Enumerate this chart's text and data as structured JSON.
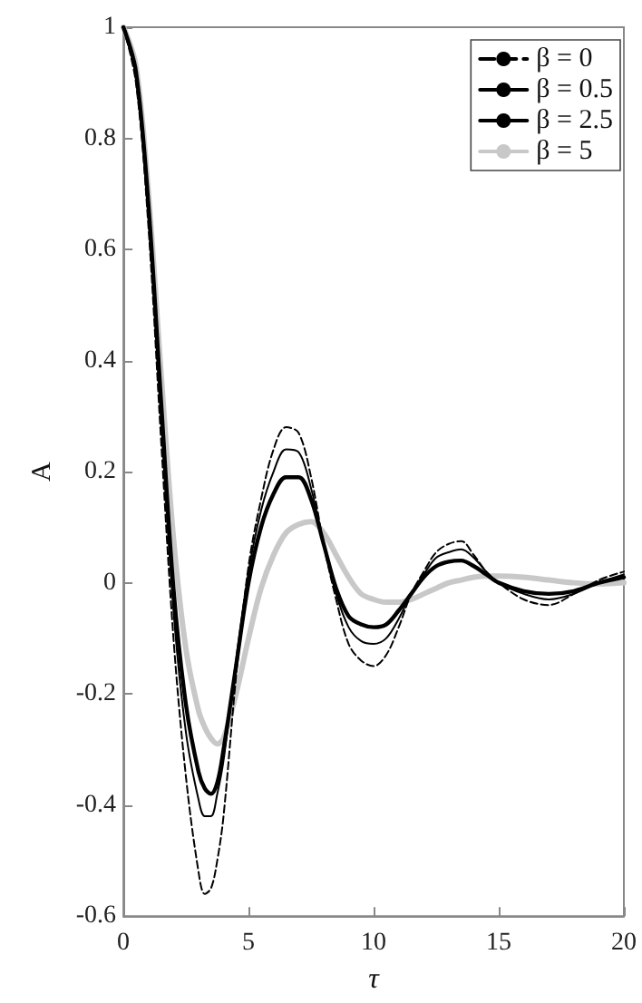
{
  "chart_data": {
    "type": "line",
    "xlabel": "τ",
    "ylabel": "A",
    "x": [
      0,
      0.5,
      1,
      1.5,
      2,
      2.5,
      3,
      3.25,
      3.5,
      3.75,
      4,
      4.5,
      5,
      5.5,
      6,
      6.5,
      7,
      7.5,
      8,
      8.5,
      9,
      9.5,
      10,
      10.5,
      11,
      11.5,
      12,
      12.5,
      13,
      13.5,
      14,
      14.5,
      15,
      16,
      17,
      18,
      19,
      20
    ],
    "series": [
      {
        "name": "β = 0",
        "color": "#000000",
        "line_style": "dashed",
        "values": [
          1,
          0.9,
          0.64,
          0.26,
          -0.1,
          -0.35,
          -0.52,
          -0.56,
          -0.55,
          -0.5,
          -0.42,
          -0.17,
          0.03,
          0.15,
          0.24,
          0.28,
          0.27,
          0.19,
          0.07,
          -0.03,
          -0.11,
          -0.14,
          -0.15,
          -0.13,
          -0.08,
          -0.02,
          0.02,
          0.055,
          0.07,
          0.075,
          0.05,
          0.02,
          0,
          -0.03,
          -0.04,
          -0.02,
          0.005,
          0.02
        ]
      },
      {
        "name": "β = 0.5",
        "color": "#000000",
        "line_style": "solid",
        "values": [
          1,
          0.91,
          0.66,
          0.3,
          -0.05,
          -0.27,
          -0.39,
          -0.42,
          -0.42,
          -0.38,
          -0.32,
          -0.14,
          0.02,
          0.13,
          0.2,
          0.24,
          0.235,
          0.17,
          0.07,
          -0.02,
          -0.08,
          -0.105,
          -0.11,
          -0.1,
          -0.065,
          -0.02,
          0.015,
          0.045,
          0.055,
          0.06,
          0.045,
          0.02,
          0,
          -0.02,
          -0.03,
          -0.02,
          0,
          0.015
        ]
      },
      {
        "name": "β = 2.5",
        "color": "#000000",
        "line_style": "solid",
        "values": [
          1,
          0.92,
          0.68,
          0.33,
          -0.01,
          -0.22,
          -0.34,
          -0.37,
          -0.38,
          -0.36,
          -0.3,
          -0.15,
          0,
          0.1,
          0.16,
          0.19,
          0.19,
          0.15,
          0.07,
          -0.01,
          -0.06,
          -0.075,
          -0.08,
          -0.075,
          -0.05,
          -0.02,
          0.01,
          0.03,
          0.038,
          0.04,
          0.03,
          0.015,
          0,
          -0.015,
          -0.02,
          -0.015,
          0,
          0.01
        ]
      },
      {
        "name": "β = 5",
        "color": "#c8c8c8",
        "line_style": "solid",
        "values": [
          1,
          0.93,
          0.7,
          0.38,
          0.08,
          -0.12,
          -0.23,
          -0.26,
          -0.28,
          -0.29,
          -0.28,
          -0.2,
          -0.1,
          -0.01,
          0.05,
          0.09,
          0.105,
          0.11,
          0.09,
          0.05,
          0.01,
          -0.02,
          -0.03,
          -0.035,
          -0.035,
          -0.03,
          -0.02,
          -0.01,
          0,
          0.005,
          0.01,
          0.012,
          0.012,
          0.01,
          0.005,
          0,
          -0.002,
          0
        ]
      }
    ],
    "xlim": [
      0,
      20
    ],
    "xticks": [
      0,
      5,
      10,
      15,
      20
    ],
    "ylim": [
      -0.6,
      1
    ],
    "yticks": [
      -0.6,
      -0.4,
      -0.2,
      0,
      0.2,
      0.4,
      0.6,
      0.8,
      1
    ],
    "grid": false,
    "legend": "top right",
    "marker": "none"
  }
}
